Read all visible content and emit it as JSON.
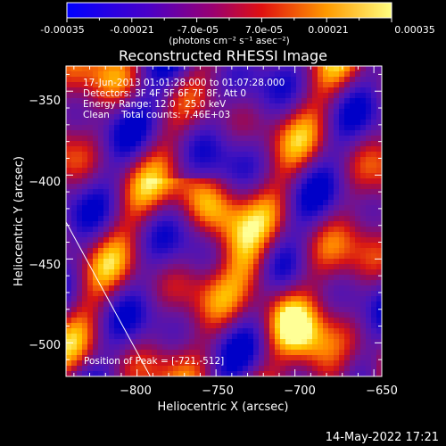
{
  "colorbar": {
    "tick_labels": [
      "-0.00035",
      "-0.00021",
      "-7.0e-05",
      "7.0e-05",
      "0.00021",
      "0.00035"
    ],
    "unit_label": "(photons cm⁻² s⁻¹ asec⁻²)",
    "range": [
      -0.00035,
      0.00035
    ]
  },
  "chart_data": {
    "type": "heatmap",
    "title": "Reconstructed RHESSI Image",
    "xlabel": "Heliocentric X (arcsec)",
    "ylabel": "Heliocentric Y (arcsec)",
    "xlim": [
      -845,
      -645
    ],
    "ylim": [
      -520,
      -335
    ],
    "x_ticks": [
      -800,
      -750,
      -700,
      -650
    ],
    "y_ticks": [
      -350,
      -400,
      -450,
      -500
    ],
    "x_tick_labels": [
      "−800",
      "−750",
      "−700",
      "−650"
    ],
    "y_tick_labels": [
      "−350",
      "−400",
      "−450",
      "−500"
    ],
    "limb_line": [
      [
        -845,
        -428
      ],
      [
        -780,
        -540
      ]
    ],
    "annotations": [
      "17-Jun-2013 01:01:28.000 to 01:07:28.000",
      "Detectors: 3F 4F 5F 6F 7F 8F, Att 0",
      "Energy Range: 12.0 - 25.0 keV",
      "Clean    Total counts: 7.46E+03"
    ],
    "peak_label": "Position of Peak = [-721,-512]",
    "grid": false
  },
  "timestamp": "14-May-2022 17:21"
}
